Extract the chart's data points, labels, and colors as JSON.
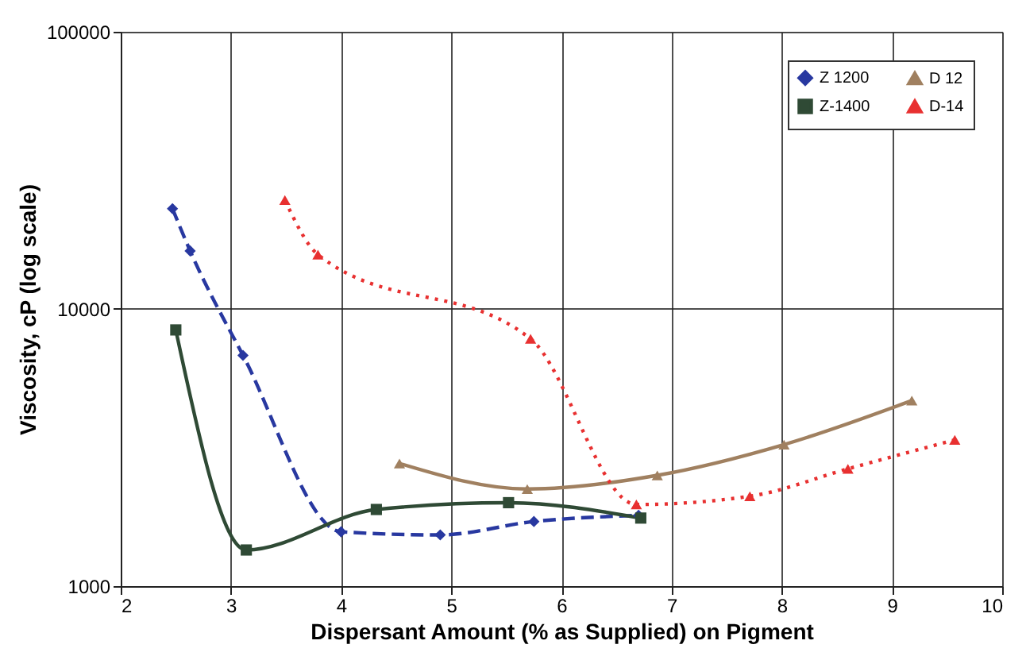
{
  "chart_data": {
    "type": "line",
    "xlabel": "Dispersant Amount (% as Supplied) on Pigment",
    "ylabel": "Viscosity, cP (log scale)",
    "log": "y",
    "xlim": [
      2,
      10
    ],
    "xticks": [
      2,
      3,
      4,
      5,
      6,
      7,
      8,
      9,
      10
    ],
    "ylim": [
      1000,
      100000
    ],
    "yticks": [
      1000,
      10000,
      100000
    ],
    "grid": true,
    "legend": "top right",
    "series": [
      {
        "name": "Z 1200",
        "color": "#2838a0",
        "marker": "diamond",
        "line_style": "dashed",
        "x": [
          2.47,
          2.63,
          3.11,
          4.0,
          4.9,
          5.75,
          6.7
        ],
        "values": [
          23000,
          16200,
          6800,
          1570,
          1530,
          1710,
          1800
        ]
      },
      {
        "name": "Z-1400",
        "color": "#2f4a35",
        "marker": "square",
        "line_style": "solid",
        "x": [
          2.5,
          3.14,
          4.32,
          5.52,
          6.72
        ],
        "values": [
          8400,
          1350,
          1890,
          2000,
          1760
        ]
      },
      {
        "name": "D 12",
        "color": "#a08060",
        "marker": "triangle",
        "line_style": "solid",
        "x": [
          4.53,
          5.69,
          6.87,
          8.02,
          9.18
        ],
        "values": [
          2770,
          2240,
          2510,
          3240,
          4670
        ]
      },
      {
        "name": "D-14",
        "color": "#e83030",
        "marker": "triangle",
        "line_style": "dotted",
        "x": [
          3.49,
          3.79,
          5.72,
          6.68,
          7.71,
          8.6,
          9.57
        ],
        "values": [
          24700,
          15700,
          7800,
          1970,
          2110,
          2650,
          3370
        ]
      }
    ]
  }
}
